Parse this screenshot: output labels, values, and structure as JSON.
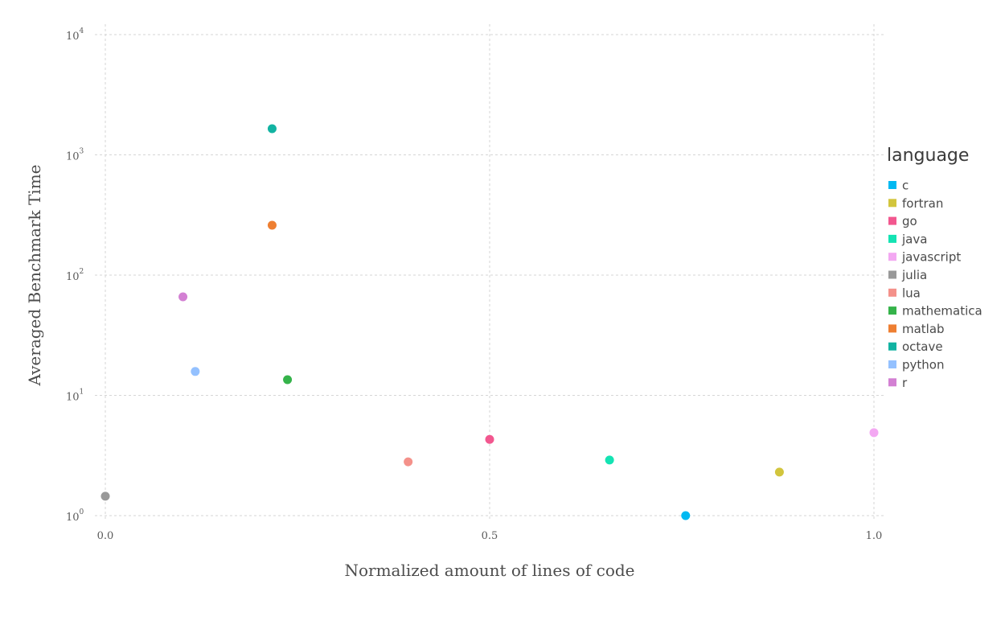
{
  "chart_data": {
    "type": "scatter",
    "xlabel": "Normalized amount of lines of code",
    "ylabel": "Averaged Benchmark Time",
    "xlim": [
      0.0,
      1.0
    ],
    "ylim": [
      1,
      10000
    ],
    "y_scale": "log10",
    "grid": true,
    "x_ticks": [
      "0.0",
      "0.5",
      "1.0"
    ],
    "y_ticks": [
      {
        "base": "10",
        "exp": "0",
        "value": 1
      },
      {
        "base": "10",
        "exp": "1",
        "value": 10
      },
      {
        "base": "10",
        "exp": "2",
        "value": 100
      },
      {
        "base": "10",
        "exp": "3",
        "value": 1000
      },
      {
        "base": "10",
        "exp": "4",
        "value": 10000
      }
    ],
    "legend": {
      "title": "language",
      "placement": "right"
    },
    "series": [
      {
        "name": "c",
        "color": "#00b9f2",
        "x": 0.755,
        "y": 1.0
      },
      {
        "name": "fortran",
        "color": "#d2c53d",
        "x": 0.877,
        "y": 2.3
      },
      {
        "name": "go",
        "color": "#f2578f",
        "x": 0.5,
        "y": 4.3
      },
      {
        "name": "java",
        "color": "#14e3b3",
        "x": 0.656,
        "y": 2.9
      },
      {
        "name": "javascript",
        "color": "#f3a8f2",
        "x": 1.0,
        "y": 4.9
      },
      {
        "name": "julia",
        "color": "#999999",
        "x": 0.0,
        "y": 1.45
      },
      {
        "name": "lua",
        "color": "#f4918a",
        "x": 0.394,
        "y": 2.8
      },
      {
        "name": "mathematica",
        "color": "#35b34a",
        "x": 0.237,
        "y": 13.5
      },
      {
        "name": "matlab",
        "color": "#ee7f32",
        "x": 0.217,
        "y": 260
      },
      {
        "name": "octave",
        "color": "#12b3a2",
        "x": 0.217,
        "y": 1650
      },
      {
        "name": "python",
        "color": "#94c1ff",
        "x": 0.117,
        "y": 15.8
      },
      {
        "name": "r",
        "color": "#d380d3",
        "x": 0.101,
        "y": 66
      }
    ]
  }
}
